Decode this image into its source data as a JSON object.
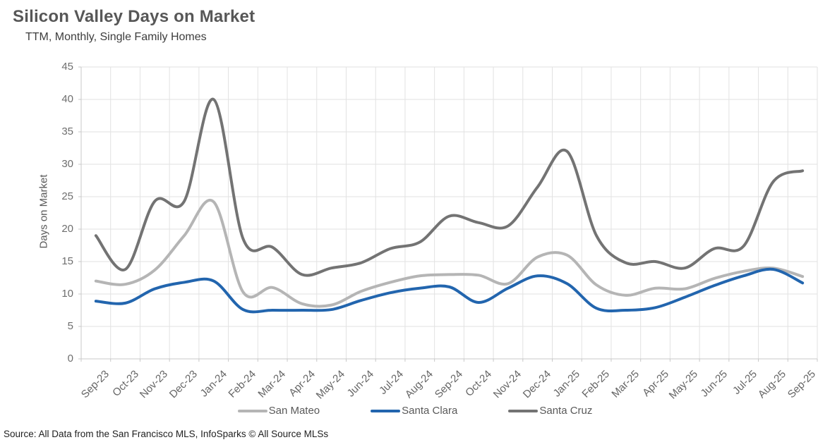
{
  "header": {
    "title": "Silicon Valley Days on Market",
    "subtitle": "TTM, Monthly, Single Family Homes"
  },
  "source": "Source: All Data from the San Francisco MLS, InfoSparks © All Source MLSs",
  "chart_data": {
    "type": "line",
    "title": "Silicon Valley Days on Market",
    "subtitle": "TTM, Monthly, Single Family Homes",
    "xlabel": "",
    "ylabel": "Days on Market",
    "ylim": [
      0,
      45
    ],
    "y_ticks": [
      0,
      5,
      10,
      15,
      20,
      25,
      30,
      35,
      40,
      45
    ],
    "grid": true,
    "smooth": true,
    "legend_position": "bottom",
    "categories": [
      "Sep-23",
      "Oct-23",
      "Nov-23",
      "Dec-23",
      "Jan-24",
      "Feb-24",
      "Mar-24",
      "Apr-24",
      "May-24",
      "Jun-24",
      "Jul-24",
      "Aug-24",
      "Sep-24",
      "Oct-24",
      "Nov-24",
      "Dec-24",
      "Jan-25",
      "Feb-25",
      "Mar-25",
      "Apr-25",
      "May-25",
      "Jun-25",
      "Jul-25",
      "Aug-25",
      "Sep-25"
    ],
    "series": [
      {
        "name": "San Mateo",
        "color": "#b5b5b5",
        "values": [
          12,
          11.5,
          13.7,
          19,
          24.2,
          10.3,
          11,
          8.5,
          8.3,
          10.4,
          11.8,
          12.8,
          13,
          12.9,
          11.6,
          15.7,
          16,
          11.4,
          9.8,
          10.9,
          10.8,
          12.4,
          13.5,
          14,
          12.7
        ]
      },
      {
        "name": "Santa Clara",
        "color": "#2265ae",
        "values": [
          8.9,
          8.6,
          10.8,
          11.8,
          12,
          7.6,
          7.5,
          7.5,
          7.6,
          9,
          10.2,
          10.9,
          11.1,
          8.7,
          10.9,
          12.8,
          11.6,
          7.8,
          7.5,
          7.9,
          9.5,
          11.3,
          12.8,
          13.8,
          11.7
        ]
      },
      {
        "name": "Santa Cruz",
        "color": "#737373",
        "values": [
          19,
          13.8,
          24.3,
          24.3,
          40,
          18.5,
          17.2,
          13,
          14,
          14.8,
          17,
          18,
          22,
          21,
          20.5,
          26.5,
          32,
          19,
          14.8,
          15,
          14,
          17,
          17.4,
          27.3,
          29
        ]
      }
    ]
  },
  "colors": {
    "grid": "#e2e2e2",
    "axis": "#c8c8c8",
    "tick_label": "#6e6e6e",
    "title": "#575757",
    "subtitle": "#3d3d3d",
    "legend_label": "#595959",
    "source_text": "#1f1f1f",
    "background": "#ffffff"
  }
}
